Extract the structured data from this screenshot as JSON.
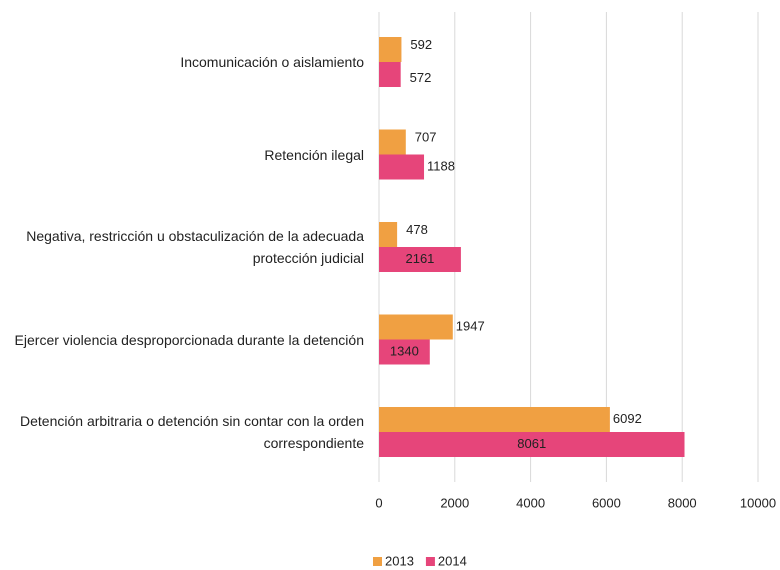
{
  "chart_data": {
    "type": "hbar",
    "categories": [
      "Incomunicación o aislamiento",
      "Retención ilegal",
      "Negativa, restricción u obstaculización de la adecuada protección judicial",
      "Ejercer violencia desproporcionada durante la detención",
      "Detención arbitraria o detención sin contar con la orden correspondiente"
    ],
    "series": [
      {
        "name": "2013",
        "color": "#f0a042",
        "values": [
          592,
          707,
          478,
          1947,
          6092
        ]
      },
      {
        "name": "2014",
        "color": "#e6457a",
        "values": [
          572,
          1188,
          2161,
          1340,
          8061
        ]
      }
    ],
    "xlim": [
      0,
      10000
    ],
    "xticks": [
      0,
      2000,
      4000,
      6000,
      8000,
      10000
    ],
    "grid": true,
    "legend": "bottom"
  }
}
